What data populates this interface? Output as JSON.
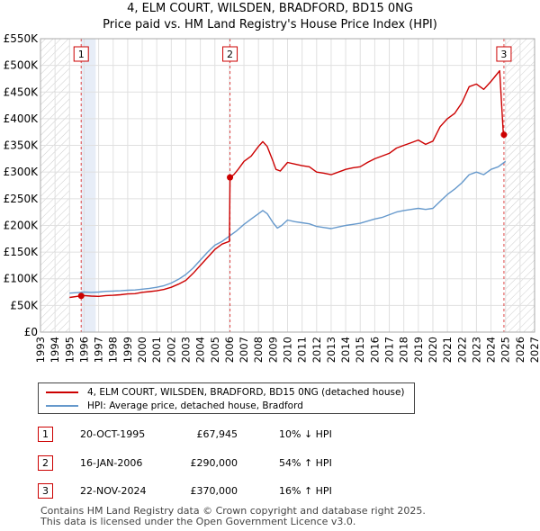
{
  "title_line1": "4, ELM COURT, WILSDEN, BRADFORD, BD15 0NG",
  "title_line2": "Price paid vs. HM Land Registry's House Price Index (HPI)",
  "chart_data": {
    "type": "line",
    "xlim": [
      1993,
      2027
    ],
    "ylim": [
      0,
      550000
    ],
    "x_ticks": [
      "1993",
      "1994",
      "1995",
      "1996",
      "1997",
      "1998",
      "1999",
      "2000",
      "2001",
      "2002",
      "2003",
      "2004",
      "2005",
      "2006",
      "2007",
      "2008",
      "2009",
      "2010",
      "2011",
      "2012",
      "2013",
      "2014",
      "2015",
      "2016",
      "2017",
      "2018",
      "2019",
      "2020",
      "2021",
      "2022",
      "2023",
      "2024",
      "2025",
      "2026",
      "2027"
    ],
    "y_ticks": [
      {
        "value": 0,
        "label": "£0"
      },
      {
        "value": 50000,
        "label": "£50K"
      },
      {
        "value": 100000,
        "label": "£100K"
      },
      {
        "value": 150000,
        "label": "£150K"
      },
      {
        "value": 200000,
        "label": "£200K"
      },
      {
        "value": 250000,
        "label": "£250K"
      },
      {
        "value": 300000,
        "label": "£300K"
      },
      {
        "value": 350000,
        "label": "£350K"
      },
      {
        "value": 400000,
        "label": "£400K"
      },
      {
        "value": 450000,
        "label": "£450K"
      },
      {
        "value": 500000,
        "label": "£500K"
      },
      {
        "value": 550000,
        "label": "£550K"
      }
    ],
    "hatched_ranges": [
      [
        1993,
        1995.0
      ],
      [
        2025.0,
        2027
      ]
    ],
    "sale_shading": [
      [
        1995.8,
        1996.8
      ]
    ],
    "series": [
      {
        "name": "4, ELM COURT, WILSDEN, BRADFORD, BD15 0NG (detached house)",
        "color": "#cc0000",
        "points": [
          [
            1995.0,
            65000
          ],
          [
            1995.8,
            67945
          ],
          [
            1996.0,
            68500
          ],
          [
            1996.5,
            67500
          ],
          [
            1997.0,
            67000
          ],
          [
            1997.5,
            68500
          ],
          [
            1998.0,
            69000
          ],
          [
            1998.5,
            70000
          ],
          [
            1999.0,
            71500
          ],
          [
            1999.5,
            72000
          ],
          [
            2000.0,
            74500
          ],
          [
            2000.5,
            76000
          ],
          [
            2001.0,
            77500
          ],
          [
            2001.5,
            80000
          ],
          [
            2002.0,
            84000
          ],
          [
            2002.5,
            90000
          ],
          [
            2003.0,
            97000
          ],
          [
            2003.5,
            110000
          ],
          [
            2004.0,
            125000
          ],
          [
            2004.5,
            140000
          ],
          [
            2005.0,
            155000
          ],
          [
            2005.5,
            165000
          ],
          [
            2006.0,
            170000
          ],
          [
            2006.04,
            290000
          ],
          [
            2006.3,
            295000
          ],
          [
            2006.6,
            305000
          ],
          [
            2007.0,
            320000
          ],
          [
            2007.5,
            330000
          ],
          [
            2008.0,
            348000
          ],
          [
            2008.3,
            357000
          ],
          [
            2008.6,
            348000
          ],
          [
            2009.0,
            320000
          ],
          [
            2009.2,
            305000
          ],
          [
            2009.5,
            302000
          ],
          [
            2010.0,
            318000
          ],
          [
            2010.5,
            315000
          ],
          [
            2011.0,
            312000
          ],
          [
            2011.5,
            310000
          ],
          [
            2012.0,
            300000
          ],
          [
            2012.5,
            298000
          ],
          [
            2013.0,
            295000
          ],
          [
            2013.5,
            300000
          ],
          [
            2014.0,
            305000
          ],
          [
            2014.5,
            308000
          ],
          [
            2015.0,
            310000
          ],
          [
            2015.5,
            318000
          ],
          [
            2016.0,
            325000
          ],
          [
            2016.5,
            330000
          ],
          [
            2017.0,
            335000
          ],
          [
            2017.5,
            345000
          ],
          [
            2018.0,
            350000
          ],
          [
            2018.5,
            355000
          ],
          [
            2019.0,
            360000
          ],
          [
            2019.5,
            352000
          ],
          [
            2020.0,
            358000
          ],
          [
            2020.5,
            385000
          ],
          [
            2021.0,
            400000
          ],
          [
            2021.5,
            410000
          ],
          [
            2022.0,
            430000
          ],
          [
            2022.5,
            460000
          ],
          [
            2023.0,
            465000
          ],
          [
            2023.5,
            455000
          ],
          [
            2024.0,
            470000
          ],
          [
            2024.3,
            480000
          ],
          [
            2024.6,
            490000
          ],
          [
            2024.85,
            370000
          ],
          [
            2024.89,
            370000
          ]
        ]
      },
      {
        "name": "HPI: Average price, detached house, Bradford",
        "color": "#6699cc",
        "points": [
          [
            1995.0,
            73000
          ],
          [
            1995.8,
            74500
          ],
          [
            1996.0,
            75000
          ],
          [
            1996.5,
            74500
          ],
          [
            1997.0,
            75000
          ],
          [
            1997.5,
            76500
          ],
          [
            1998.0,
            77000
          ],
          [
            1998.5,
            77500
          ],
          [
            1999.0,
            78500
          ],
          [
            1999.5,
            79000
          ],
          [
            2000.0,
            80500
          ],
          [
            2000.5,
            82000
          ],
          [
            2001.0,
            84000
          ],
          [
            2001.5,
            87000
          ],
          [
            2002.0,
            92000
          ],
          [
            2002.5,
            99000
          ],
          [
            2003.0,
            108000
          ],
          [
            2003.5,
            120000
          ],
          [
            2004.0,
            135000
          ],
          [
            2004.5,
            150000
          ],
          [
            2005.0,
            163000
          ],
          [
            2005.5,
            170000
          ],
          [
            2006.0,
            180000
          ],
          [
            2006.5,
            190000
          ],
          [
            2007.0,
            202000
          ],
          [
            2007.5,
            212000
          ],
          [
            2008.0,
            222000
          ],
          [
            2008.3,
            228000
          ],
          [
            2008.6,
            222000
          ],
          [
            2009.0,
            205000
          ],
          [
            2009.3,
            195000
          ],
          [
            2009.6,
            200000
          ],
          [
            2010.0,
            210000
          ],
          [
            2010.5,
            207000
          ],
          [
            2011.0,
            205000
          ],
          [
            2011.5,
            203000
          ],
          [
            2012.0,
            198000
          ],
          [
            2012.5,
            196000
          ],
          [
            2013.0,
            194000
          ],
          [
            2013.5,
            197000
          ],
          [
            2014.0,
            200000
          ],
          [
            2014.5,
            202000
          ],
          [
            2015.0,
            204000
          ],
          [
            2015.5,
            208000
          ],
          [
            2016.0,
            212000
          ],
          [
            2016.5,
            215000
          ],
          [
            2017.0,
            220000
          ],
          [
            2017.5,
            225000
          ],
          [
            2018.0,
            228000
          ],
          [
            2018.5,
            230000
          ],
          [
            2019.0,
            232000
          ],
          [
            2019.5,
            230000
          ],
          [
            2020.0,
            232000
          ],
          [
            2020.5,
            245000
          ],
          [
            2021.0,
            258000
          ],
          [
            2021.5,
            268000
          ],
          [
            2022.0,
            280000
          ],
          [
            2022.5,
            295000
          ],
          [
            2023.0,
            300000
          ],
          [
            2023.5,
            295000
          ],
          [
            2024.0,
            305000
          ],
          [
            2024.5,
            310000
          ],
          [
            2024.9,
            318000
          ],
          [
            2025.0,
            320000
          ]
        ]
      }
    ],
    "sales": [
      {
        "id": "1",
        "x": 1995.8,
        "price": 67945
      },
      {
        "id": "2",
        "x": 2006.04,
        "price": 290000
      },
      {
        "id": "3",
        "x": 2024.89,
        "price": 370000
      }
    ]
  },
  "legend": {
    "property_label": "4, ELM COURT, WILSDEN, BRADFORD, BD15 0NG (detached house)",
    "hpi_label": "HPI: Average price, detached house, Bradford"
  },
  "sales_table": [
    {
      "id": "1",
      "date": "20-OCT-1995",
      "price": "£67,945",
      "hpi": "10% ↓ HPI"
    },
    {
      "id": "2",
      "date": "16-JAN-2006",
      "price": "£290,000",
      "hpi": "54% ↑ HPI"
    },
    {
      "id": "3",
      "date": "22-NOV-2024",
      "price": "£370,000",
      "hpi": "16% ↑ HPI"
    }
  ],
  "footer": {
    "line1": "Contains HM Land Registry data © Crown copyright and database right 2025.",
    "line2": "This data is licensed under the Open Government Licence v3.0."
  },
  "colors": {
    "property": "#cc0000",
    "hpi": "#6699cc"
  }
}
